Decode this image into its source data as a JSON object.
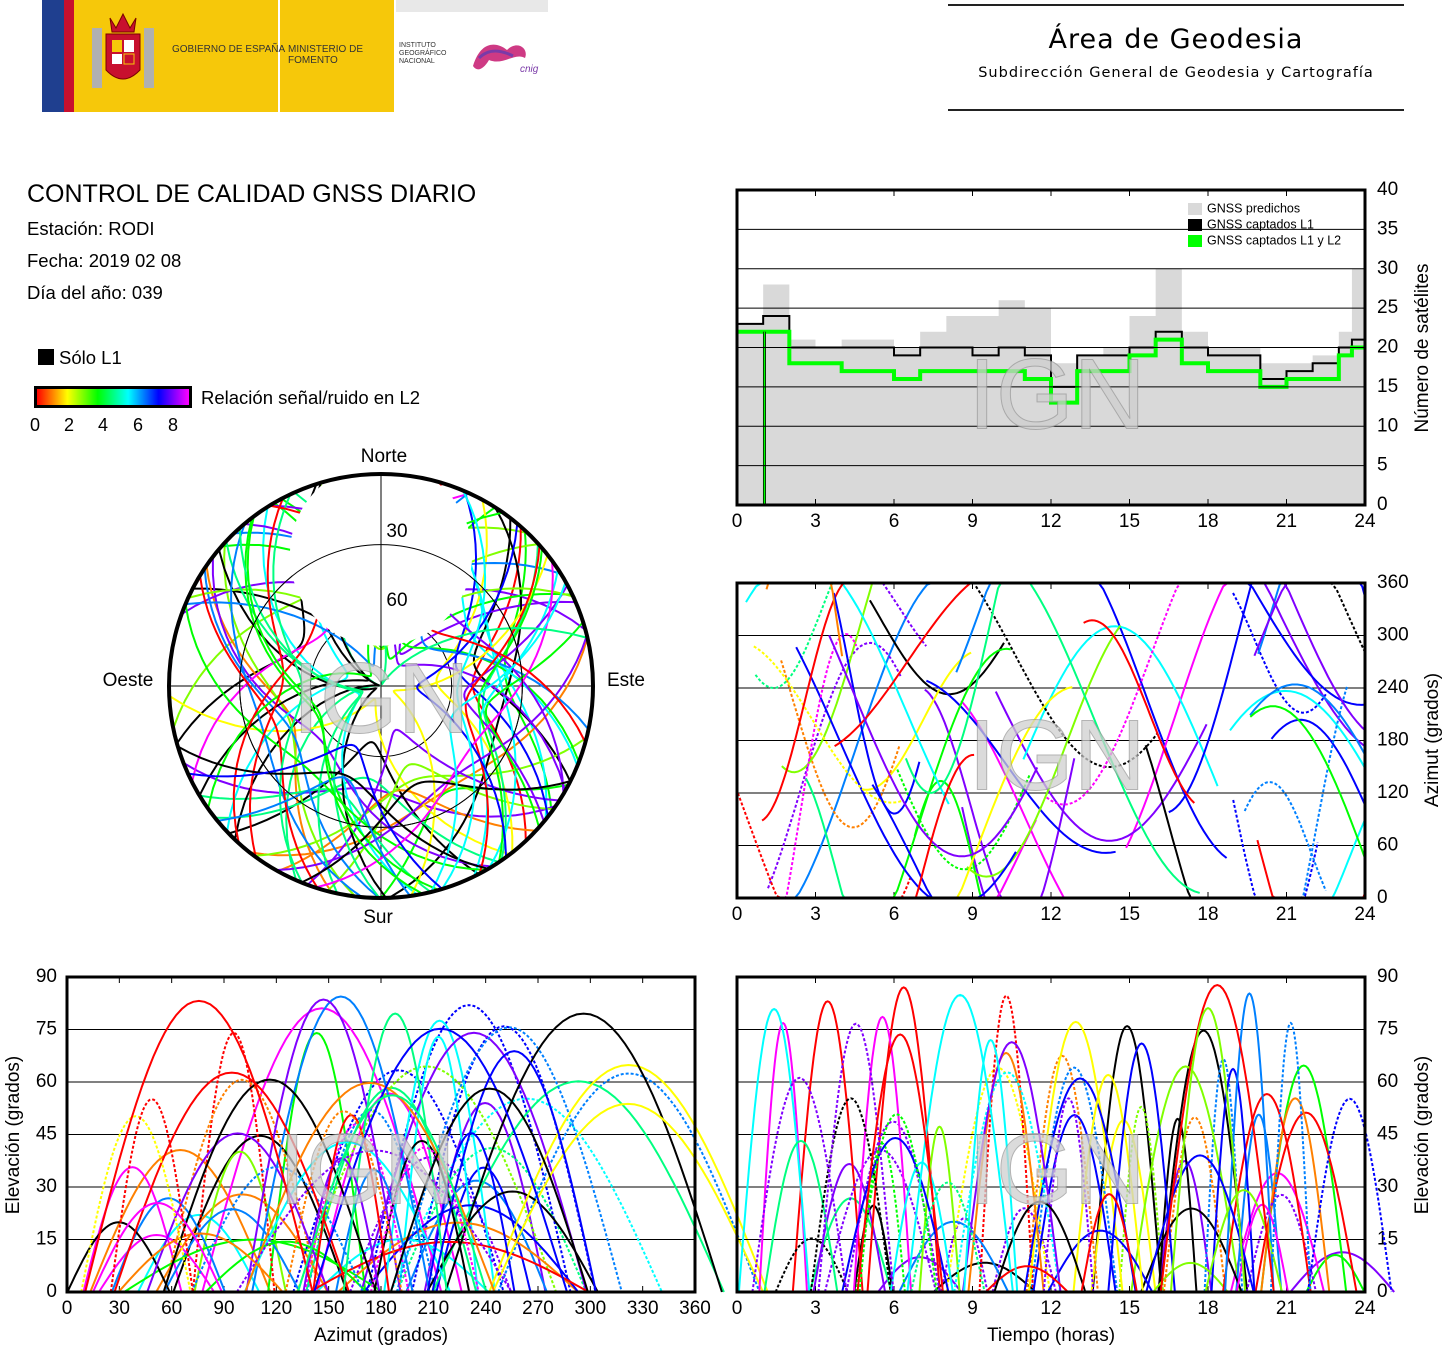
{
  "header": {
    "gov_text": "GOBIERNO DE ESPAÑA",
    "ministry_text": "MINISTERIO DE FOMENTO",
    "ign_text": "INSTITUTO GEOGRÁFICO NACIONAL",
    "cnig_text": "cnig",
    "area_title": "Área de Geodesia",
    "area_subtitle": "Subdirección General de Geodesia y Cartografía"
  },
  "info": {
    "title": "CONTROL DE CALIDAD GNSS DIARIO",
    "station": "Estación: RODI",
    "date": "Fecha: 2019 02 08",
    "doy": "Día del año: 039",
    "legend_l1": "Sólo L1",
    "legend_snr": "Relación señal/ruido en L2",
    "snr_ticks": [
      "0",
      "2",
      "4",
      "6",
      "8"
    ]
  },
  "colors": {
    "predicted": "#d9d9d9",
    "l1": "#000000",
    "l1l2": "#00ff00",
    "snr_scale": [
      "#ff0000",
      "#ff8000",
      "#ffff00",
      "#80ff00",
      "#00ff00",
      "#00ff80",
      "#00ffff",
      "#0080ff",
      "#0000ff",
      "#8000ff",
      "#ff00ff"
    ]
  },
  "watermark": "IGN",
  "chart_data": [
    {
      "type": "area",
      "id": "sat-count",
      "ylabel": "Número de satélites",
      "xlim": [
        0,
        24
      ],
      "ylim": [
        0,
        40
      ],
      "xticks": [
        "0",
        "3",
        "6",
        "9",
        "12",
        "15",
        "18",
        "21",
        "24"
      ],
      "yticks": [
        "0",
        "5",
        "10",
        "15",
        "20",
        "25",
        "30",
        "35",
        "40"
      ],
      "legend": [
        "GNSS predichos",
        "GNSS captados L1",
        "GNSS captados L1 y L2"
      ],
      "legend_position": "top-right",
      "grid": true,
      "x": [
        0,
        1,
        2,
        3,
        4,
        5,
        6,
        7,
        8,
        9,
        10,
        11,
        12,
        13,
        14,
        15,
        16,
        17,
        18,
        19,
        20,
        21,
        22,
        23,
        23.5,
        24
      ],
      "series": [
        {
          "name": "GNSS predichos",
          "values": [
            23,
            28,
            21,
            20,
            21,
            21,
            20,
            22,
            24,
            24,
            26,
            25,
            18,
            19,
            20,
            24,
            30,
            22,
            20,
            20,
            18,
            18,
            19,
            22,
            30,
            30
          ]
        },
        {
          "name": "GNSS captados L1",
          "values": [
            23,
            24,
            20,
            20,
            20,
            20,
            19,
            20,
            20,
            19,
            20,
            19,
            15,
            19,
            19,
            20,
            22,
            20,
            19,
            19,
            16,
            17,
            18,
            20,
            21,
            21
          ]
        },
        {
          "name": "GNSS captados L1 y L2",
          "values": [
            22,
            22,
            18,
            18,
            17,
            17,
            16,
            17,
            17,
            17,
            17,
            16,
            13,
            17,
            17,
            19,
            21,
            18,
            17,
            17,
            15,
            16,
            16,
            19,
            20,
            20
          ]
        }
      ]
    },
    {
      "type": "scatter",
      "id": "skyplot",
      "labels": {
        "north": "Norte",
        "south": "Sur",
        "east": "Este",
        "west": "Oeste"
      },
      "rings": [
        "30",
        "60"
      ]
    },
    {
      "type": "scatter",
      "id": "azimuth-time",
      "ylabel": "Azimut (grados)",
      "xlim": [
        0,
        24
      ],
      "ylim": [
        0,
        360
      ],
      "xticks": [
        "0",
        "3",
        "6",
        "9",
        "12",
        "15",
        "18",
        "21",
        "24"
      ],
      "yticks": [
        "0",
        "60",
        "120",
        "180",
        "240",
        "300",
        "360"
      ],
      "grid": true
    },
    {
      "type": "scatter",
      "id": "elev-azimuth",
      "xlabel": "Azimut (grados)",
      "ylabel": "Elevación (grados)",
      "xlim": [
        0,
        360
      ],
      "ylim": [
        0,
        90
      ],
      "xticks": [
        "0",
        "30",
        "60",
        "90",
        "120",
        "150",
        "180",
        "210",
        "240",
        "270",
        "300",
        "330",
        "360"
      ],
      "yticks": [
        "0",
        "15",
        "30",
        "45",
        "60",
        "75",
        "90"
      ],
      "grid": true
    },
    {
      "type": "scatter",
      "id": "elev-time",
      "xlabel": "Tiempo (horas)",
      "ylabel": "Elevación (grados)",
      "xlim": [
        0,
        24
      ],
      "ylim": [
        0,
        90
      ],
      "xticks": [
        "0",
        "3",
        "6",
        "9",
        "12",
        "15",
        "18",
        "21",
        "24"
      ],
      "yticks": [
        "0",
        "15",
        "30",
        "45",
        "60",
        "75",
        "90"
      ],
      "grid": true
    }
  ]
}
